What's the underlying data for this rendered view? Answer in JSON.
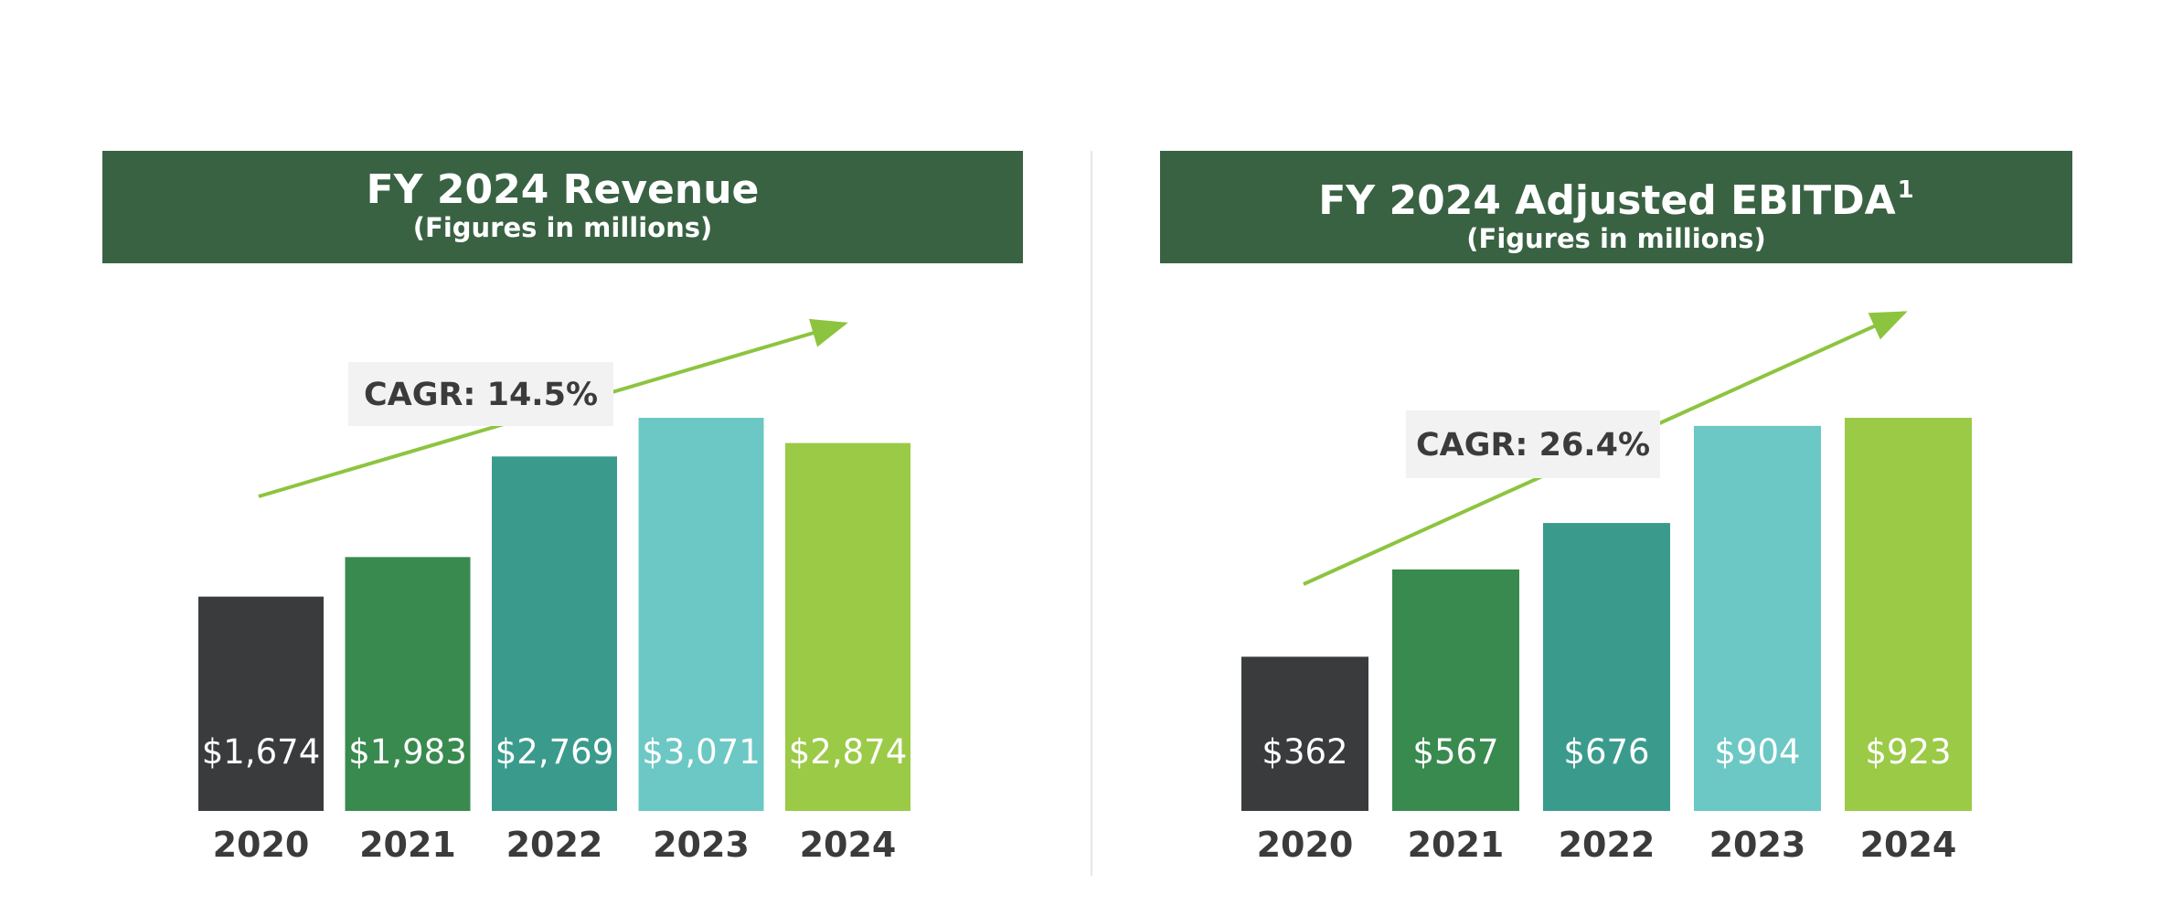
{
  "colors": {
    "header_bg": "#396243",
    "bars": [
      "#3a3b3d",
      "#388a4e",
      "#3a9b8d",
      "#6cc8c4",
      "#9bca47"
    ],
    "arrow": "#8dc43f",
    "cagr_box": "#f2f2f2"
  },
  "chart_data": [
    {
      "type": "bar",
      "title": "FY 2024 Revenue",
      "subtitle": "(Figures in millions)",
      "title_superscript": "",
      "categories": [
        "2020",
        "2021",
        "2022",
        "2023",
        "2024"
      ],
      "values": [
        1674,
        1983,
        2769,
        3071,
        2874
      ],
      "data_labels": [
        "$1,674",
        "$1,983",
        "$2,769",
        "$3,071",
        "$2,874"
      ],
      "ylim": [
        0,
        3071
      ],
      "annotation": "CAGR: 14.5%",
      "xlabel": "",
      "ylabel": ""
    },
    {
      "type": "bar",
      "title": "FY 2024 Adjusted EBITDA",
      "subtitle": "(Figures in millions)",
      "title_superscript": "1",
      "categories": [
        "2020",
        "2021",
        "2022",
        "2023",
        "2024"
      ],
      "values": [
        362,
        567,
        676,
        904,
        923
      ],
      "data_labels": [
        "$362",
        "$567",
        "$676",
        "$904",
        "$923"
      ],
      "ylim": [
        0,
        923
      ],
      "annotation": "CAGR: 26.4%",
      "xlabel": "",
      "ylabel": ""
    }
  ]
}
